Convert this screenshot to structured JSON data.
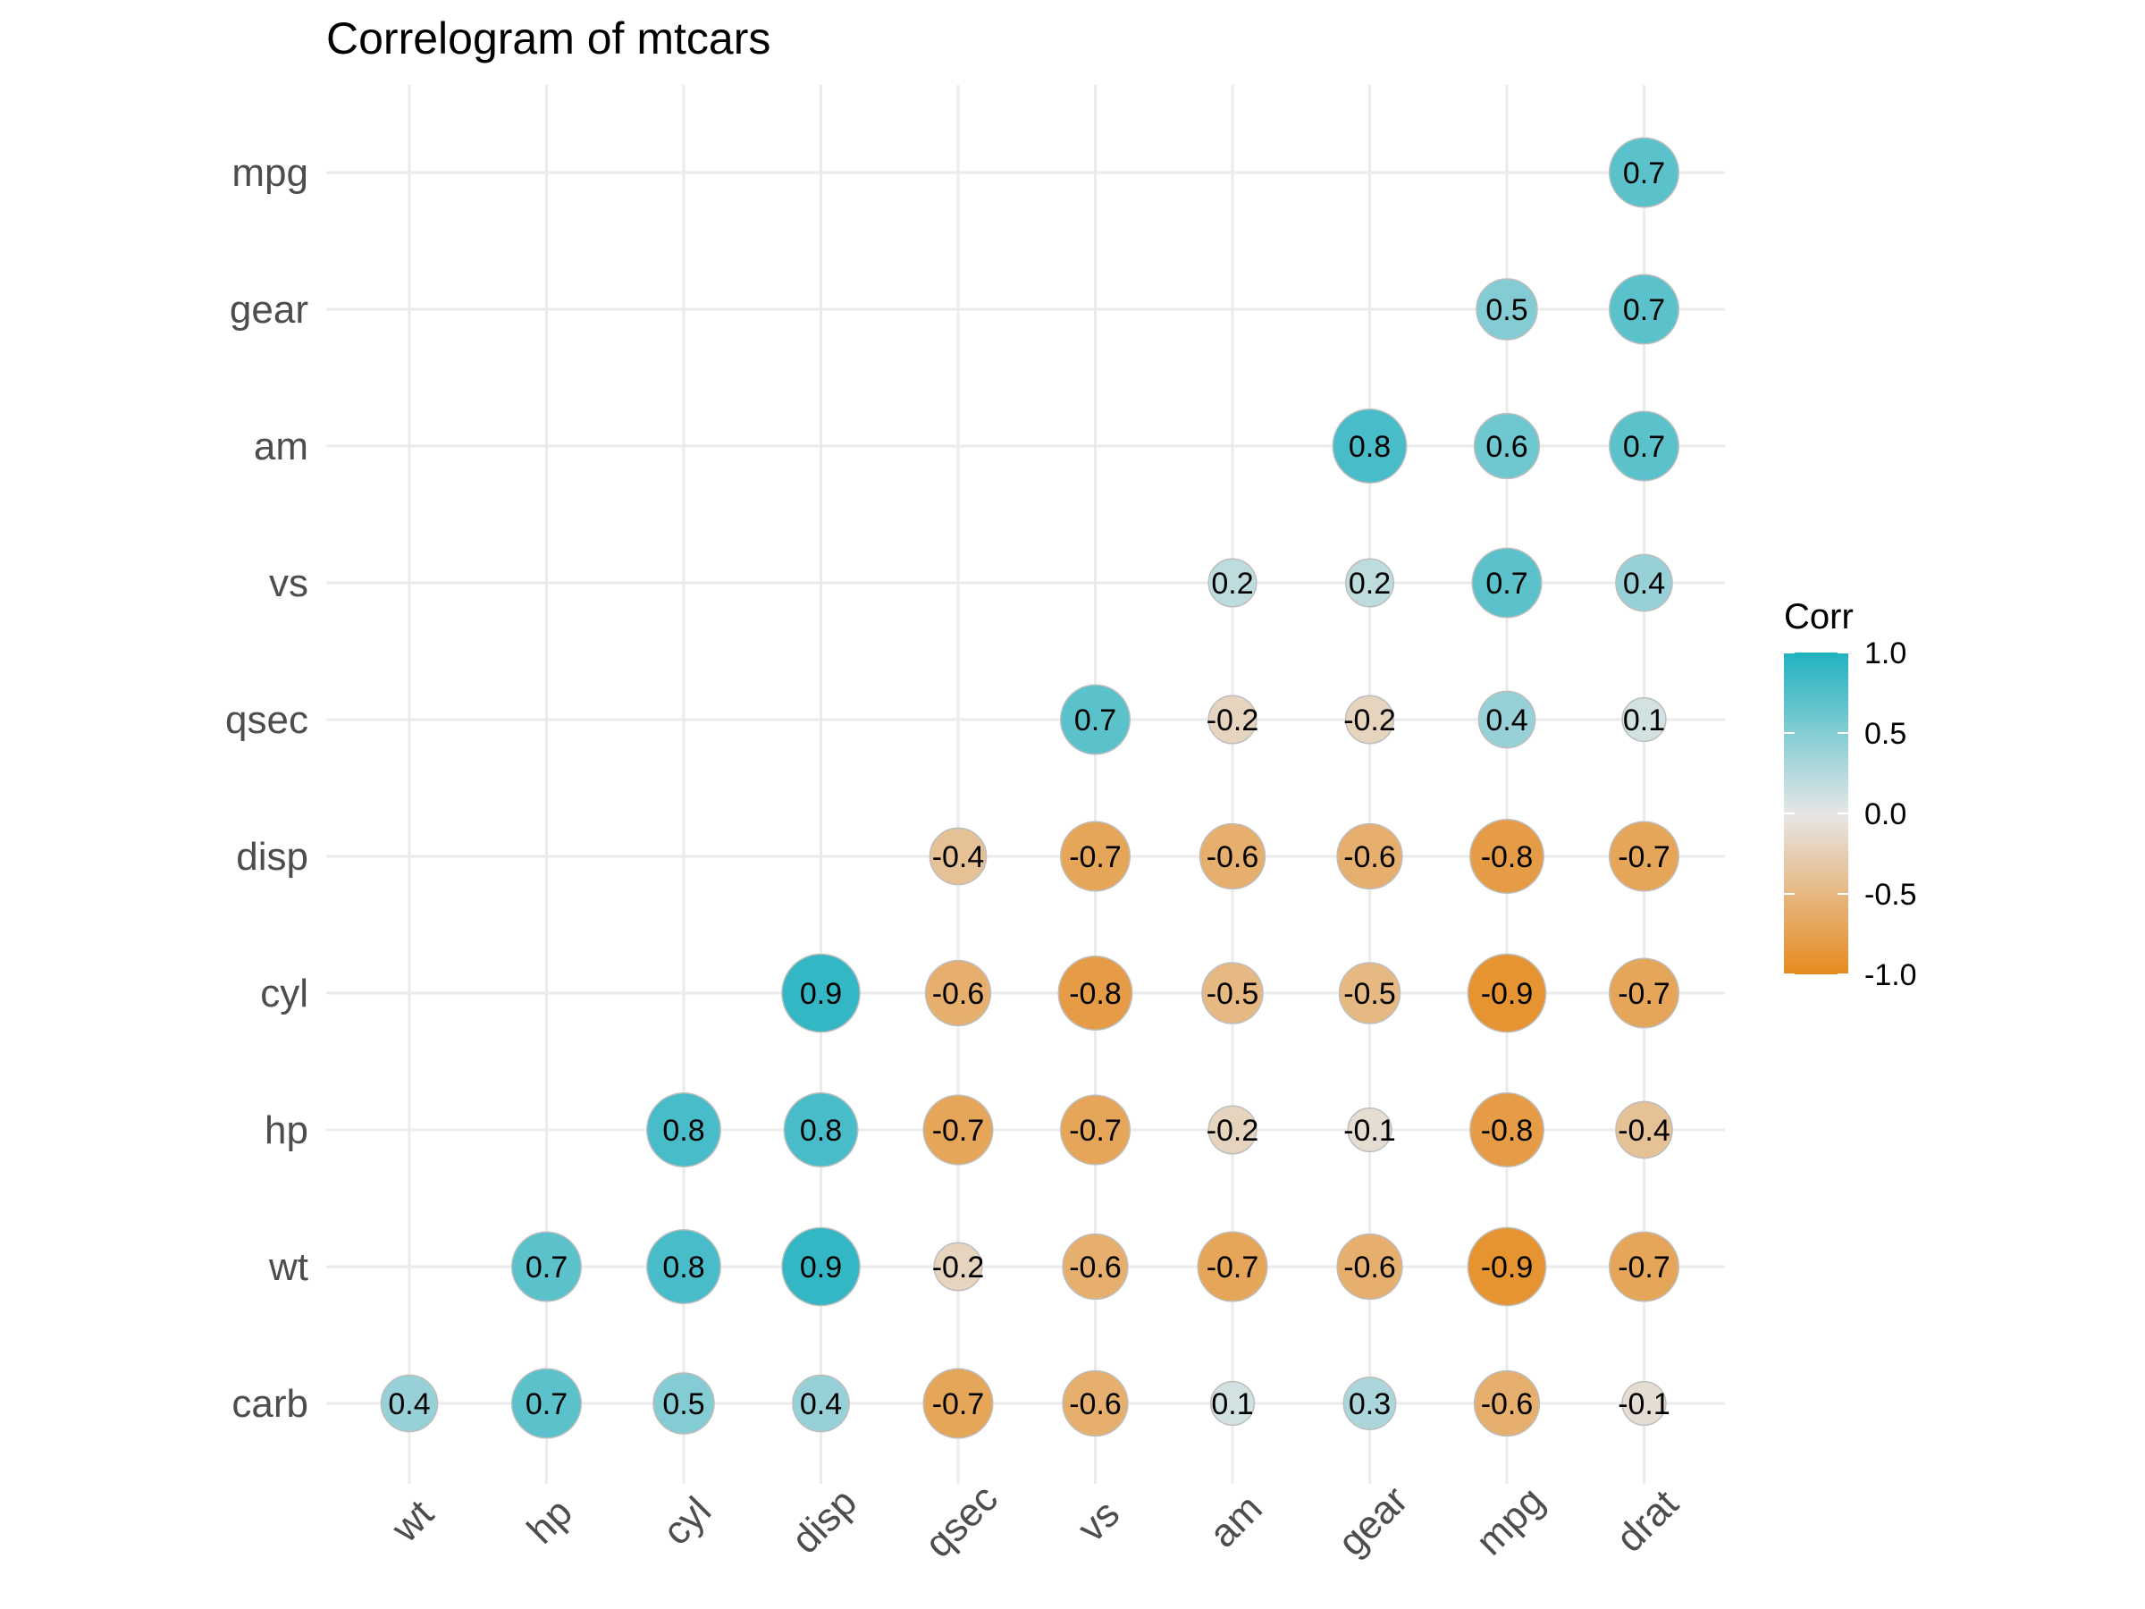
{
  "chart_data": {
    "type": "heatmap",
    "title": "Correlogram of mtcars",
    "x_labels": [
      "wt",
      "hp",
      "cyl",
      "disp",
      "qsec",
      "vs",
      "am",
      "gear",
      "mpg",
      "drat"
    ],
    "y_labels": [
      "carb",
      "wt",
      "hp",
      "cyl",
      "disp",
      "qsec",
      "vs",
      "am",
      "gear",
      "mpg"
    ],
    "cells": [
      {
        "x": "wt",
        "y": "carb",
        "value": 0.4,
        "label": "0.4"
      },
      {
        "x": "hp",
        "y": "carb",
        "value": 0.7,
        "label": "0.7"
      },
      {
        "x": "cyl",
        "y": "carb",
        "value": 0.5,
        "label": "0.5"
      },
      {
        "x": "disp",
        "y": "carb",
        "value": 0.4,
        "label": "0.4"
      },
      {
        "x": "qsec",
        "y": "carb",
        "value": -0.7,
        "label": "-0.7"
      },
      {
        "x": "vs",
        "y": "carb",
        "value": -0.6,
        "label": "-0.6"
      },
      {
        "x": "am",
        "y": "carb",
        "value": 0.1,
        "label": "0.1"
      },
      {
        "x": "gear",
        "y": "carb",
        "value": 0.3,
        "label": "0.3"
      },
      {
        "x": "mpg",
        "y": "carb",
        "value": -0.6,
        "label": "-0.6"
      },
      {
        "x": "drat",
        "y": "carb",
        "value": -0.1,
        "label": "-0.1"
      },
      {
        "x": "hp",
        "y": "wt",
        "value": 0.7,
        "label": "0.7"
      },
      {
        "x": "cyl",
        "y": "wt",
        "value": 0.8,
        "label": "0.8"
      },
      {
        "x": "disp",
        "y": "wt",
        "value": 0.9,
        "label": "0.9"
      },
      {
        "x": "qsec",
        "y": "wt",
        "value": -0.2,
        "label": "-0.2"
      },
      {
        "x": "vs",
        "y": "wt",
        "value": -0.6,
        "label": "-0.6"
      },
      {
        "x": "am",
        "y": "wt",
        "value": -0.7,
        "label": "-0.7"
      },
      {
        "x": "gear",
        "y": "wt",
        "value": -0.6,
        "label": "-0.6"
      },
      {
        "x": "mpg",
        "y": "wt",
        "value": -0.9,
        "label": "-0.9"
      },
      {
        "x": "drat",
        "y": "wt",
        "value": -0.7,
        "label": "-0.7"
      },
      {
        "x": "cyl",
        "y": "hp",
        "value": 0.8,
        "label": "0.8"
      },
      {
        "x": "disp",
        "y": "hp",
        "value": 0.8,
        "label": "0.8"
      },
      {
        "x": "qsec",
        "y": "hp",
        "value": -0.7,
        "label": "-0.7"
      },
      {
        "x": "vs",
        "y": "hp",
        "value": -0.7,
        "label": "-0.7"
      },
      {
        "x": "am",
        "y": "hp",
        "value": -0.2,
        "label": "-0.2"
      },
      {
        "x": "gear",
        "y": "hp",
        "value": -0.1,
        "label": "-0.1"
      },
      {
        "x": "mpg",
        "y": "hp",
        "value": -0.8,
        "label": "-0.8"
      },
      {
        "x": "drat",
        "y": "hp",
        "value": -0.4,
        "label": "-0.4"
      },
      {
        "x": "disp",
        "y": "cyl",
        "value": 0.9,
        "label": "0.9"
      },
      {
        "x": "qsec",
        "y": "cyl",
        "value": -0.6,
        "label": "-0.6"
      },
      {
        "x": "vs",
        "y": "cyl",
        "value": -0.8,
        "label": "-0.8"
      },
      {
        "x": "am",
        "y": "cyl",
        "value": -0.5,
        "label": "-0.5"
      },
      {
        "x": "gear",
        "y": "cyl",
        "value": -0.5,
        "label": "-0.5"
      },
      {
        "x": "mpg",
        "y": "cyl",
        "value": -0.9,
        "label": "-0.9"
      },
      {
        "x": "drat",
        "y": "cyl",
        "value": -0.7,
        "label": "-0.7"
      },
      {
        "x": "qsec",
        "y": "disp",
        "value": -0.4,
        "label": "-0.4"
      },
      {
        "x": "vs",
        "y": "disp",
        "value": -0.7,
        "label": "-0.7"
      },
      {
        "x": "am",
        "y": "disp",
        "value": -0.6,
        "label": "-0.6"
      },
      {
        "x": "gear",
        "y": "disp",
        "value": -0.6,
        "label": "-0.6"
      },
      {
        "x": "mpg",
        "y": "disp",
        "value": -0.8,
        "label": "-0.8"
      },
      {
        "x": "drat",
        "y": "disp",
        "value": -0.7,
        "label": "-0.7"
      },
      {
        "x": "vs",
        "y": "qsec",
        "value": 0.7,
        "label": "0.7"
      },
      {
        "x": "am",
        "y": "qsec",
        "value": -0.2,
        "label": "-0.2"
      },
      {
        "x": "gear",
        "y": "qsec",
        "value": -0.2,
        "label": "-0.2"
      },
      {
        "x": "mpg",
        "y": "qsec",
        "value": 0.4,
        "label": "0.4"
      },
      {
        "x": "drat",
        "y": "qsec",
        "value": 0.1,
        "label": "0.1"
      },
      {
        "x": "am",
        "y": "vs",
        "value": 0.2,
        "label": "0.2"
      },
      {
        "x": "gear",
        "y": "vs",
        "value": 0.2,
        "label": "0.2"
      },
      {
        "x": "mpg",
        "y": "vs",
        "value": 0.7,
        "label": "0.7"
      },
      {
        "x": "drat",
        "y": "vs",
        "value": 0.4,
        "label": "0.4"
      },
      {
        "x": "gear",
        "y": "am",
        "value": 0.8,
        "label": "0.8"
      },
      {
        "x": "mpg",
        "y": "am",
        "value": 0.6,
        "label": "0.6"
      },
      {
        "x": "drat",
        "y": "am",
        "value": 0.7,
        "label": "0.7"
      },
      {
        "x": "mpg",
        "y": "gear",
        "value": 0.5,
        "label": "0.5"
      },
      {
        "x": "drat",
        "y": "gear",
        "value": 0.7,
        "label": "0.7"
      },
      {
        "x": "drat",
        "y": "mpg",
        "value": 0.7,
        "label": "0.7"
      }
    ],
    "legend": {
      "title": "Corr",
      "placement": "right",
      "ticks": [
        1.0,
        0.5,
        0.0,
        -0.5,
        -1.0
      ],
      "tick_labels": [
        "1.0",
        "0.5",
        "0.0",
        "-0.5",
        "-1.0"
      ],
      "range": [
        -1,
        1
      ]
    },
    "colors": {
      "high": "#20B2C0",
      "mid": "#E6E6E6",
      "low": "#E68A1E",
      "grid": "#EBEBEB",
      "circle_outline": "#BDBDBD"
    },
    "grid": true
  }
}
